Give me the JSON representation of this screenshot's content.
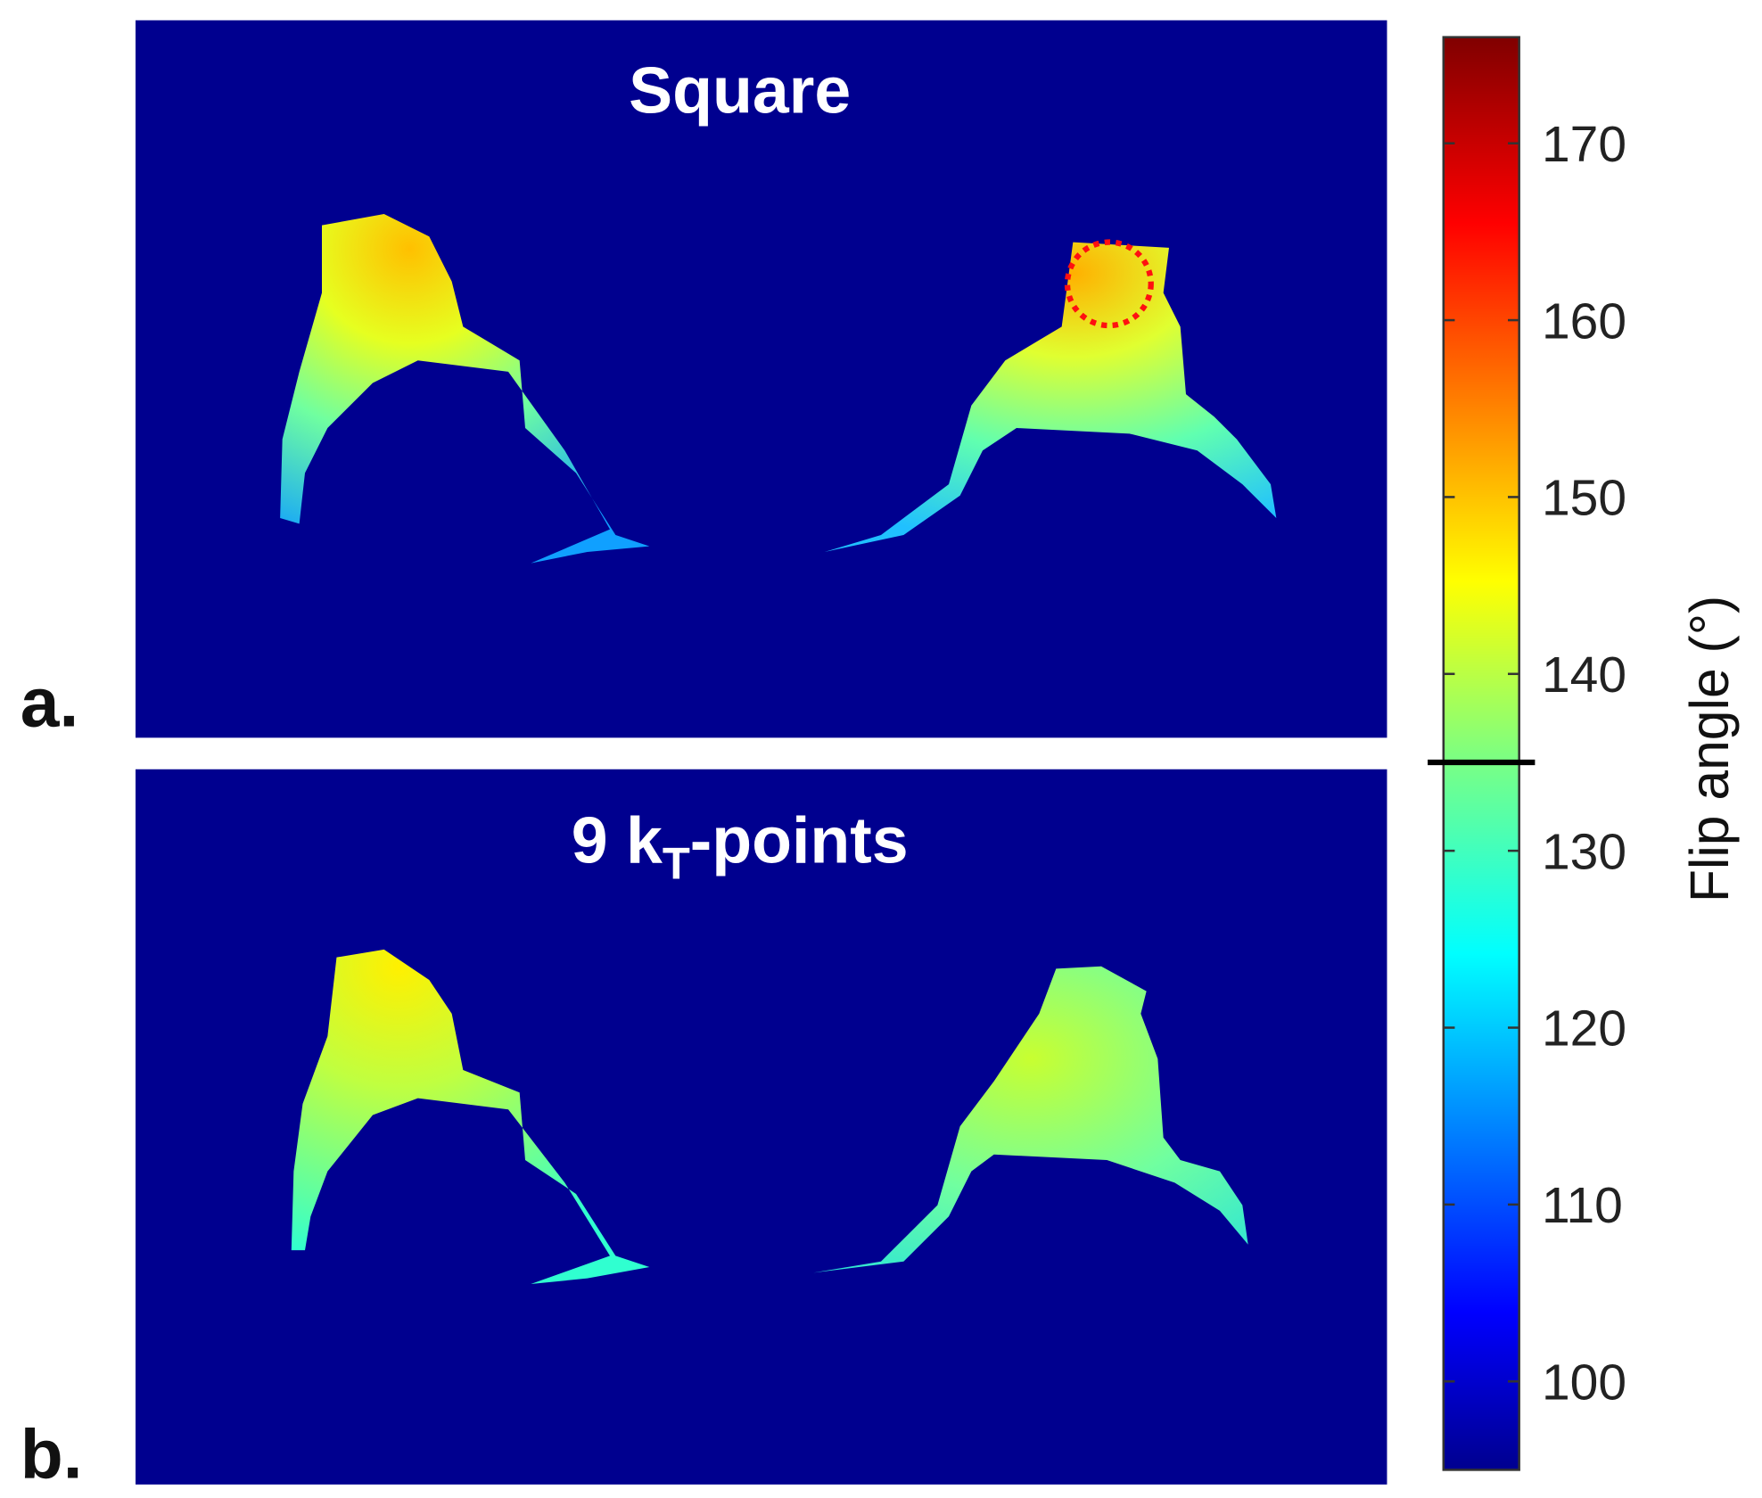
{
  "panels": [
    {
      "label": "a.",
      "title": "Square"
    },
    {
      "label": "b.",
      "title": {
        "main": "9 k",
        "subscript": "T",
        "suffix": "-points"
      }
    }
  ],
  "colorbar": {
    "label": "Flip angle (°)",
    "clim": [
      95,
      176
    ],
    "ticks": [
      100,
      110,
      120,
      130,
      140,
      150,
      160,
      170
    ],
    "threshold": 135
  }
}
